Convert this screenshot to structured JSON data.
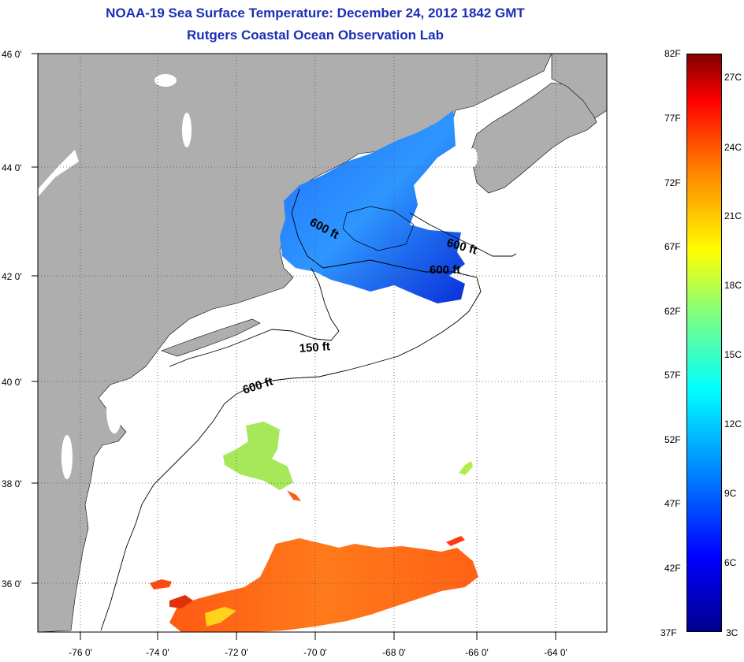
{
  "title": {
    "line1": "NOAA-19 Sea Surface Temperature:  December 24, 2012 1842 GMT",
    "line2": "Rutgers Coastal Ocean Observation Lab"
  },
  "map": {
    "lat_labels": [
      "46 0'",
      "44 0'",
      "42 0'",
      "40 0'",
      "38 0'",
      "36 0'"
    ],
    "lon_labels": [
      "-76 0'",
      "-74 0'",
      "-72 0'",
      "-70 0'",
      "-68 0'",
      "-66 0'",
      "-64 0'"
    ],
    "contours": [
      "600 ft",
      "600 ft",
      "600 ft",
      "150 ft",
      "600 ft"
    ],
    "colors": {
      "land": "#aeaeae",
      "ocean": "#ffffff",
      "grid": "#555555"
    }
  },
  "colorbar": {
    "fahrenheit": [
      "82F",
      "77F",
      "72F",
      "67F",
      "62F",
      "57F",
      "52F",
      "47F",
      "42F",
      "37F"
    ],
    "celsius": [
      "27C",
      "24C",
      "21C",
      "18C",
      "15C",
      "12C",
      "9C",
      "6C",
      "3C"
    ]
  }
}
